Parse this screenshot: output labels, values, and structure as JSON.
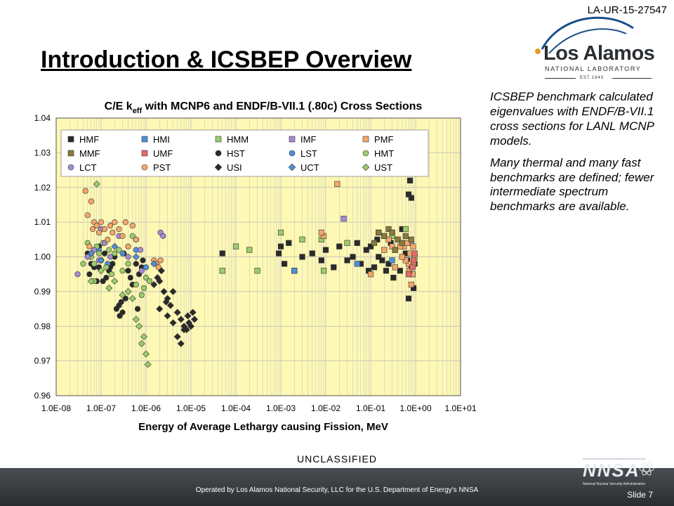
{
  "header": {
    "doc_id": "LA-UR-15-27547",
    "title": "Introduction & ICSBEP Overview"
  },
  "logo": {
    "main": "Los Alamos",
    "sub": "NATIONAL LABORATORY",
    "est": "EST.1943"
  },
  "side_text": {
    "p1": "ICSBEP benchmark calculated eigenvalues with ENDF/B-VII.1 cross sections for LANL MCNP models.",
    "p2": "Many thermal and many fast benchmarks are defined; fewer intermediate spectrum benchmarks are available."
  },
  "footer": {
    "classification": "UNCLASSIFIED",
    "operated_by": "Operated by Los Alamos National Security, LLC for the U.S. Department of Energy's NNSA",
    "slide_label": "Slide 7",
    "nnsa_logo_text": "NNSA",
    "nnsa_sub": "National Nuclear Security Administration"
  },
  "colors": {
    "plot_background": "#fdf8b4",
    "footer_background": "#3a3d40",
    "title_color": "#000000"
  },
  "chart_data": {
    "type": "scatter",
    "title_main": "C/E k",
    "title_sub": "eff",
    "title_rest": " with MCNP6 and ENDF/B-VII.1 (.80c) Cross Sections",
    "xlabel": "Energy of Average Lethargy causing Fission, MeV",
    "ylabel": "",
    "x_scale": "log",
    "xlim": [
      1e-08,
      10
    ],
    "ylim": [
      0.96,
      1.04
    ],
    "x_ticks": [
      1e-08,
      1e-07,
      1e-06,
      1e-05,
      0.0001,
      0.001,
      0.01,
      0.1,
      1,
      10
    ],
    "x_tick_labels": [
      "1.0E-08",
      "1.0E-07",
      "1.0E-06",
      "1.0E-05",
      "1.0E-04",
      "1.0E-03",
      "1.0E-02",
      "1.0E-01",
      "1.0E+00",
      "1.0E+01"
    ],
    "y_ticks": [
      0.96,
      0.97,
      0.98,
      0.99,
      1.0,
      1.01,
      1.02,
      1.03,
      1.04
    ],
    "y_tick_labels": [
      "0.96",
      "0.97",
      "0.98",
      "0.99",
      "1.00",
      "1.01",
      "1.02",
      "1.03",
      "1.04"
    ],
    "grid": true,
    "legend_position": "top-left, 3 rows by 5 columns",
    "series": [
      {
        "name": "HMF",
        "marker": "square",
        "color": "#2a2a2a",
        "points": [
          [
            0.75,
            1.022
          ],
          [
            0.7,
            1.018
          ],
          [
            0.8,
            1.017
          ],
          [
            0.5,
            1.008
          ],
          [
            0.3,
            1.007
          ],
          [
            0.2,
            1.006
          ],
          [
            0.15,
            1.0
          ],
          [
            0.1,
            1.003
          ],
          [
            0.12,
            0.997
          ],
          [
            0.25,
            0.998
          ],
          [
            0.35,
            1.002
          ],
          [
            0.45,
            0.996
          ],
          [
            0.55,
            1.004
          ],
          [
            0.65,
            0.999
          ],
          [
            0.85,
            0.995
          ],
          [
            0.9,
            0.991
          ],
          [
            0.7,
            0.988
          ],
          [
            0.8,
            0.997
          ],
          [
            0.4,
            1.005
          ],
          [
            0.28,
            1.004
          ],
          [
            0.18,
            0.999
          ],
          [
            0.08,
            1.002
          ],
          [
            0.06,
            0.998
          ],
          [
            0.05,
            1.004
          ],
          [
            0.04,
            1.0
          ],
          [
            0.03,
            0.999
          ],
          [
            0.02,
            1.003
          ],
          [
            0.015,
            0.997
          ],
          [
            0.01,
            1.002
          ],
          [
            0.008,
            0.999
          ],
          [
            0.005,
            1.001
          ],
          [
            0.003,
            1.0
          ],
          [
            0.002,
            0.996
          ],
          [
            0.0015,
            1.004
          ],
          [
            0.001,
            1.003
          ],
          [
            0.0012,
            0.998
          ],
          [
            0.0009,
            1.001
          ],
          [
            5e-05,
            1.001
          ],
          [
            0.6,
            1.001
          ],
          [
            0.95,
            0.998
          ],
          [
            0.32,
            0.994
          ],
          [
            0.22,
            0.996
          ],
          [
            0.14,
            1.005
          ],
          [
            0.09,
            0.996
          ]
        ]
      },
      {
        "name": "HMI",
        "marker": "square",
        "color": "#4f8fd6",
        "points": [
          [
            0.002,
            0.996
          ],
          [
            0.05,
            0.998
          ],
          [
            0.3,
            0.999
          ]
        ]
      },
      {
        "name": "HMM",
        "marker": "square",
        "color": "#9ccc6a",
        "points": [
          [
            0.001,
            1.007
          ],
          [
            0.003,
            1.005
          ],
          [
            0.008,
            1.005
          ],
          [
            0.03,
            1.004
          ],
          [
            0.3,
            1.006
          ],
          [
            0.6,
            1.008
          ],
          [
            0.0002,
            1.002
          ],
          [
            0.0001,
            1.003
          ],
          [
            0.0003,
            0.996
          ],
          [
            5e-05,
            0.996
          ],
          [
            0.009,
            0.996
          ]
        ]
      },
      {
        "name": "IMF",
        "marker": "square",
        "color": "#a48bd1",
        "points": [
          [
            0.025,
            1.011
          ],
          [
            0.15,
            1.007
          ],
          [
            0.8,
            1.004
          ]
        ]
      },
      {
        "name": "PMF",
        "marker": "square",
        "color": "#f4a76a",
        "points": [
          [
            0.8,
            0.992
          ],
          [
            0.85,
            0.995
          ],
          [
            0.9,
            0.998
          ],
          [
            0.75,
            1.001
          ],
          [
            0.7,
            0.998
          ],
          [
            0.6,
            0.999
          ],
          [
            0.55,
            1.003
          ],
          [
            0.65,
            1.004
          ],
          [
            0.5,
            1.0
          ],
          [
            0.45,
            1.003
          ],
          [
            0.3,
            1.003
          ],
          [
            0.2,
            1.002
          ],
          [
            0.25,
            1.005
          ],
          [
            0.018,
            1.021
          ],
          [
            0.009,
            1.006
          ],
          [
            0.008,
            1.007
          ],
          [
            0.95,
            1.0
          ],
          [
            0.88,
            1.003
          ],
          [
            0.35,
            0.997
          ],
          [
            0.1,
            0.995
          ],
          [
            0.72,
            0.996
          ]
        ]
      },
      {
        "name": "MMF",
        "marker": "square",
        "color": "#8b7a3a",
        "points": [
          [
            0.15,
            1.007
          ],
          [
            0.2,
            1.006
          ],
          [
            0.25,
            1.008
          ],
          [
            0.3,
            1.007
          ],
          [
            0.4,
            1.005
          ],
          [
            0.5,
            1.004
          ],
          [
            0.6,
            1.006
          ],
          [
            0.8,
            1.005
          ],
          [
            0.12,
            1.004
          ],
          [
            0.35,
            1.002
          ]
        ]
      },
      {
        "name": "UMF",
        "marker": "square",
        "color": "#e36b6b",
        "points": [
          [
            0.9,
            0.999
          ],
          [
            0.85,
            0.997
          ],
          [
            0.95,
            1.001
          ],
          [
            0.7,
            0.995
          ]
        ]
      },
      {
        "name": "HST",
        "marker": "circle",
        "color": "#2a2a2a",
        "points": [
          [
            5e-08,
            1.001
          ],
          [
            6e-08,
            0.998
          ],
          [
            7e-08,
            0.997
          ],
          [
            8e-08,
            0.993
          ],
          [
            9e-08,
            1.003
          ],
          [
            1e-07,
            0.999
          ],
          [
            1.2e-07,
            1.001
          ],
          [
            1.5e-07,
            0.996
          ],
          [
            1.8e-07,
            0.998
          ],
          [
            2e-07,
            1.0
          ],
          [
            2.5e-07,
            0.986
          ],
          [
            2.8e-07,
            0.987
          ],
          [
            3e-07,
            0.984
          ],
          [
            3.5e-07,
            0.988
          ],
          [
            4e-07,
            0.996
          ],
          [
            4.5e-07,
            0.994
          ],
          [
            5e-07,
            0.992
          ],
          [
            6e-07,
            0.998
          ],
          [
            7e-07,
            0.995
          ],
          [
            8e-07,
            0.997
          ],
          [
            2.2e-07,
            0.985
          ],
          [
            2.6e-07,
            0.983
          ],
          [
            6.5e-07,
            0.985
          ],
          [
            1.3e-07,
            0.994
          ],
          [
            1.6e-07,
            0.997
          ],
          [
            3.2e-07,
            1.001
          ],
          [
            8.5e-07,
            0.999
          ],
          [
            9e-08,
            0.997
          ],
          [
            5.5e-08,
            0.995
          ],
          [
            1.1e-07,
            0.993
          ]
        ]
      },
      {
        "name": "LST",
        "marker": "circle",
        "color": "#4f8fd6",
        "points": [
          [
            6e-08,
            1.0
          ],
          [
            9e-08,
            1.002
          ],
          [
            1.4e-07,
            0.998
          ],
          [
            3e-07,
            1.001
          ],
          [
            6e-07,
            1.002
          ],
          [
            1e-06,
            0.997
          ]
        ]
      },
      {
        "name": "HMT",
        "marker": "circle",
        "color": "#9ccc6a",
        "points": [
          [
            6e-08,
            1.0
          ],
          [
            7e-08,
            0.998
          ],
          [
            8e-08,
            1.003
          ],
          [
            9e-08,
            1.001
          ],
          [
            1e-07,
            0.999
          ],
          [
            1.1e-07,
            1.004
          ],
          [
            1.3e-07,
            0.997
          ],
          [
            1.5e-07,
            1.002
          ],
          [
            1.7e-07,
            0.995
          ],
          [
            2e-07,
            1.001
          ],
          [
            4e-08,
            0.998
          ],
          [
            5e-08,
            1.004
          ],
          [
            3e-07,
            0.996
          ],
          [
            4e-07,
            0.998
          ],
          [
            6e-07,
            0.992
          ],
          [
            8e-07,
            0.989
          ],
          [
            9e-07,
            0.991
          ],
          [
            1e-06,
            0.994
          ],
          [
            1.2e-06,
            0.993
          ],
          [
            2.5e-07,
            1.002
          ],
          [
            5e-07,
            1.006
          ],
          [
            7e-08,
            0.993
          ]
        ]
      },
      {
        "name": "LCT",
        "marker": "circle",
        "color": "#a48bd1",
        "points": [
          [
            3e-08,
            0.995
          ],
          [
            5e-08,
            1.0
          ],
          [
            7e-08,
            1.002
          ],
          [
            9e-08,
            0.999
          ],
          [
            1.2e-07,
            1.004
          ],
          [
            1.6e-07,
            1.0
          ],
          [
            2.5e-07,
            1.006
          ],
          [
            4e-07,
            1.0
          ],
          [
            6e-07,
            1.005
          ],
          [
            7.5e-07,
            1.002
          ],
          [
            2.1e-06,
            1.007
          ],
          [
            2.4e-06,
            1.006
          ],
          [
            8e-07,
            0.996
          ],
          [
            1e-07,
            1.008
          ]
        ]
      },
      {
        "name": "PST",
        "marker": "circle",
        "color": "#f4a76a",
        "points": [
          [
            4.5e-08,
            1.019
          ],
          [
            6e-08,
            1.016
          ],
          [
            5e-08,
            1.012
          ],
          [
            7e-08,
            1.01
          ],
          [
            8e-08,
            1.009
          ],
          [
            9e-08,
            1.007
          ],
          [
            1e-07,
            1.01
          ],
          [
            1.2e-07,
            1.008
          ],
          [
            1.4e-07,
            1.005
          ],
          [
            1.6e-07,
            1.009
          ],
          [
            1.8e-07,
            1.007
          ],
          [
            2e-07,
            1.01
          ],
          [
            2.5e-07,
            1.008
          ],
          [
            3e-07,
            1.006
          ],
          [
            4e-07,
            1.003
          ],
          [
            5e-07,
            1.009
          ],
          [
            6e-07,
            1.005
          ],
          [
            3.5e-07,
            1.01
          ],
          [
            1.5e-06,
            0.999
          ],
          [
            1.7e-06,
            0.998
          ],
          [
            1.9e-06,
            0.997
          ],
          [
            2.1e-06,
            0.999
          ],
          [
            5.5e-08,
            1.003
          ],
          [
            6.5e-08,
            1.008
          ]
        ]
      },
      {
        "name": "USI",
        "marker": "diamond",
        "color": "#2a2a2a",
        "points": [
          [
            1.5e-06,
            0.992
          ],
          [
            2e-06,
            0.993
          ],
          [
            2.5e-06,
            0.99
          ],
          [
            3e-06,
            0.988
          ],
          [
            3.5e-06,
            0.986
          ],
          [
            4e-06,
            0.99
          ],
          [
            5e-06,
            0.984
          ],
          [
            6e-06,
            0.982
          ],
          [
            7e-06,
            0.98
          ],
          [
            8e-06,
            0.979
          ],
          [
            9e-06,
            0.981
          ],
          [
            1e-05,
            0.98
          ],
          [
            2e-06,
            0.985
          ],
          [
            3e-06,
            0.983
          ],
          [
            4e-06,
            0.981
          ],
          [
            5e-06,
            0.977
          ],
          [
            6e-06,
            0.975
          ],
          [
            7e-06,
            0.979
          ],
          [
            2.2e-06,
            0.996
          ],
          [
            1.8e-06,
            0.994
          ],
          [
            2.8e-06,
            0.987
          ],
          [
            8.5e-06,
            0.983
          ],
          [
            1.2e-05,
            0.982
          ],
          [
            1.1e-05,
            0.984
          ]
        ]
      },
      {
        "name": "UCT",
        "marker": "diamond",
        "color": "#4f8fd6",
        "points": [
          [
            6e-08,
            1.001
          ],
          [
            1e-07,
            0.999
          ],
          [
            2e-07,
            1.003
          ],
          [
            6e-07,
            1.0
          ],
          [
            1.5e-06,
            0.998
          ]
        ]
      },
      {
        "name": "UST",
        "marker": "diamond",
        "color": "#9ccc6a",
        "points": [
          [
            8e-08,
            1.021
          ],
          [
            1e-07,
            0.996
          ],
          [
            1.5e-07,
            0.991
          ],
          [
            2e-07,
            0.993
          ],
          [
            3e-07,
            0.989
          ],
          [
            5e-07,
            0.988
          ],
          [
            6e-07,
            0.982
          ],
          [
            7e-07,
            0.98
          ],
          [
            8e-07,
            0.975
          ],
          [
            1e-06,
            0.972
          ],
          [
            1.1e-06,
            0.969
          ],
          [
            9e-07,
            0.977
          ],
          [
            6e-08,
            0.993
          ],
          [
            4e-07,
            0.99
          ]
        ]
      }
    ]
  }
}
